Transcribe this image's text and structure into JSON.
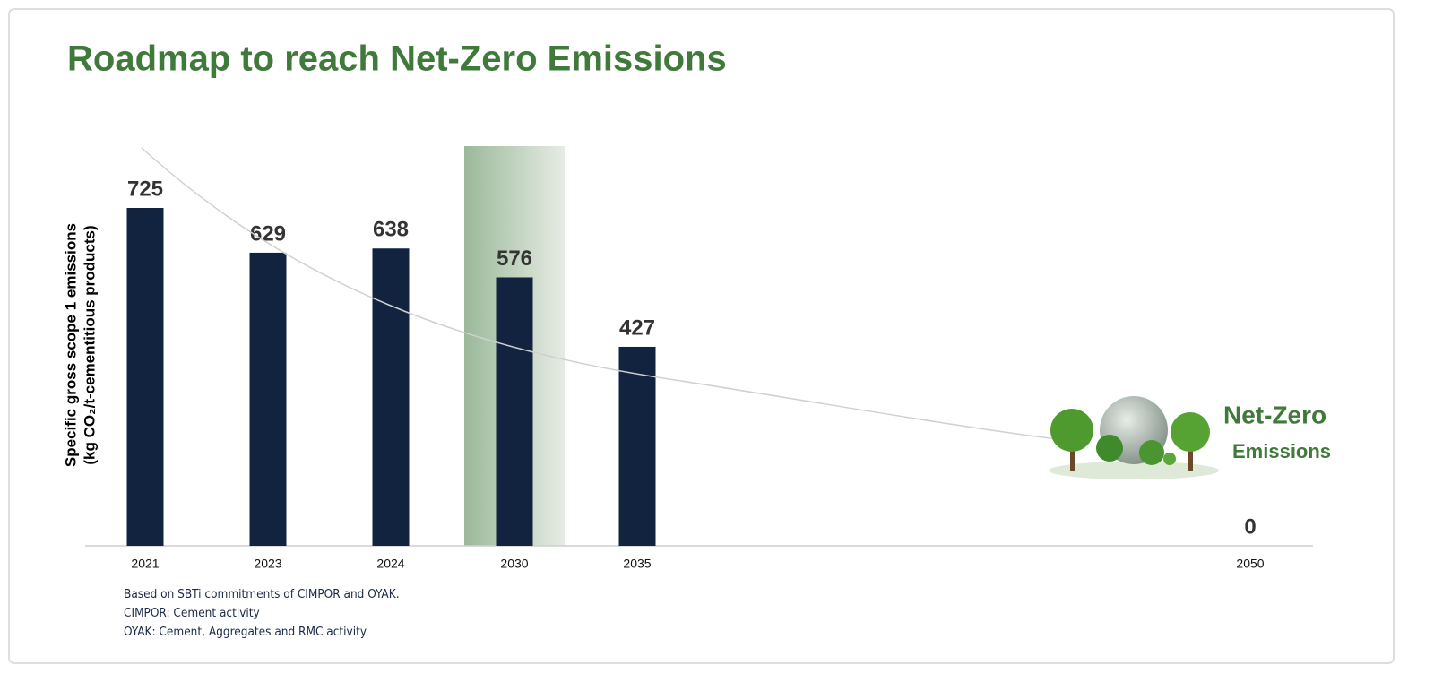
{
  "chart_data": {
    "type": "bar",
    "title": "Roadmap to reach Net-Zero Emissions",
    "y_label": [
      "Specific gross scope 1 emissions",
      "(kg CO₂/t-cementitious products)"
    ],
    "categories": [
      "2021",
      "2023",
      "2024",
      "2030",
      "2035",
      "2050"
    ],
    "values": [
      725,
      629,
      638,
      576,
      427,
      0
    ],
    "color": "#12233f",
    "ylim": [
      0,
      725
    ],
    "annotations": [
      "Net-Zero",
      "Emissions"
    ],
    "notes": [
      "Based on SBTi commitments of CIMPOR and OYAK.",
      "CIMPOR: Cement activity",
      "OYAK: Cement, Aggregates and RMC activity"
    ]
  }
}
